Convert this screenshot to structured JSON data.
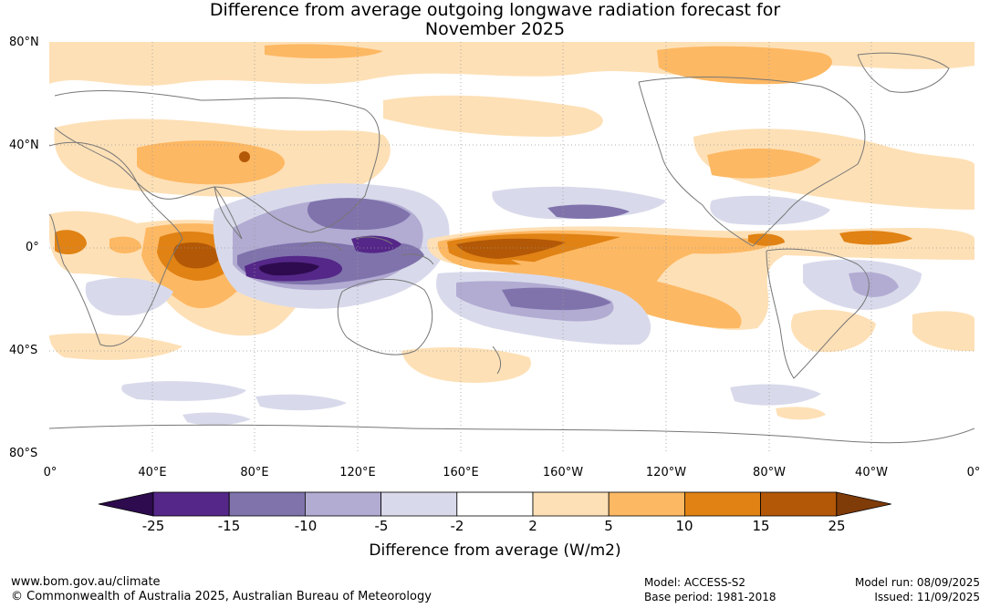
{
  "header": {
    "title_line1": "Difference from average outgoing longwave radiation forecast for",
    "title_line2": "November 2025"
  },
  "map": {
    "lat_labels": [
      "80°N",
      "40°N",
      "0°",
      "40°S",
      "80°S"
    ],
    "lon_labels": [
      "0°",
      "40°E",
      "80°E",
      "120°E",
      "160°E",
      "160°W",
      "120°W",
      "80°W",
      "40°W",
      "0°"
    ]
  },
  "colorbar": {
    "title": "Difference from average (W/m2)",
    "tick_labels": [
      "-25",
      "-15",
      "-10",
      "-5",
      "-2",
      "2",
      "5",
      "10",
      "15",
      "25"
    ],
    "colors": [
      "#2d0b4e",
      "#542788",
      "#8073ac",
      "#b2abd2",
      "#d8daeb",
      "#ffffff",
      "#fee0b6",
      "#fdb863",
      "#e08214",
      "#b35806",
      "#7f3b08"
    ]
  },
  "footer": {
    "website": "www.bom.gov.au/climate",
    "copyright": "© Commonwealth of Australia 2025, Australian Bureau of Meteorology",
    "model": "Model: ACCESS-S2",
    "base_period": "Base period: 1981-2018",
    "model_run": "Model run: 08/09/2025",
    "issued": "Issued: 11/09/2025"
  }
}
